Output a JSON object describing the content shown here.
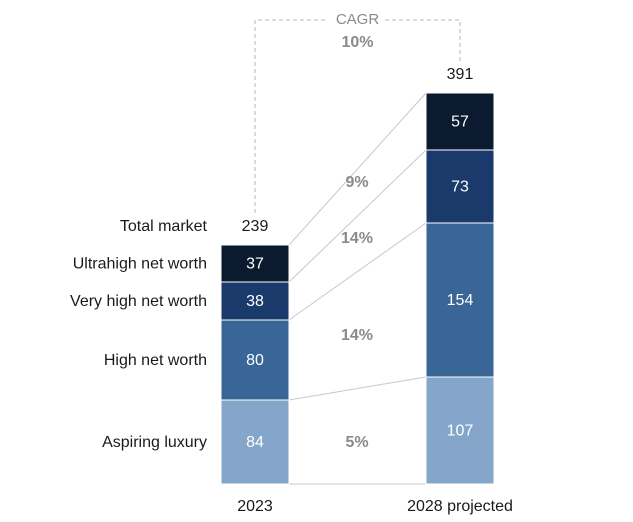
{
  "chart_data": {
    "type": "bar",
    "stacked": true,
    "categories": [
      "2023",
      "2028 projected"
    ],
    "series": [
      {
        "name": "Aspiring luxury",
        "values": [
          84,
          107
        ],
        "color": "#84a6cb",
        "cagr": "5%"
      },
      {
        "name": "High net worth",
        "values": [
          80,
          154
        ],
        "color": "#396696",
        "cagr": "14%"
      },
      {
        "name": "Very high net worth",
        "values": [
          38,
          73
        ],
        "color": "#193a6a",
        "cagr": "14%"
      },
      {
        "name": "Ultrahigh net worth",
        "values": [
          37,
          57
        ],
        "color": "#0b1a2f",
        "cagr": "9%"
      }
    ],
    "totals": {
      "label": "Total market",
      "values": [
        239,
        391
      ]
    },
    "cagr": {
      "title": "CAGR",
      "total": "10%"
    }
  }
}
